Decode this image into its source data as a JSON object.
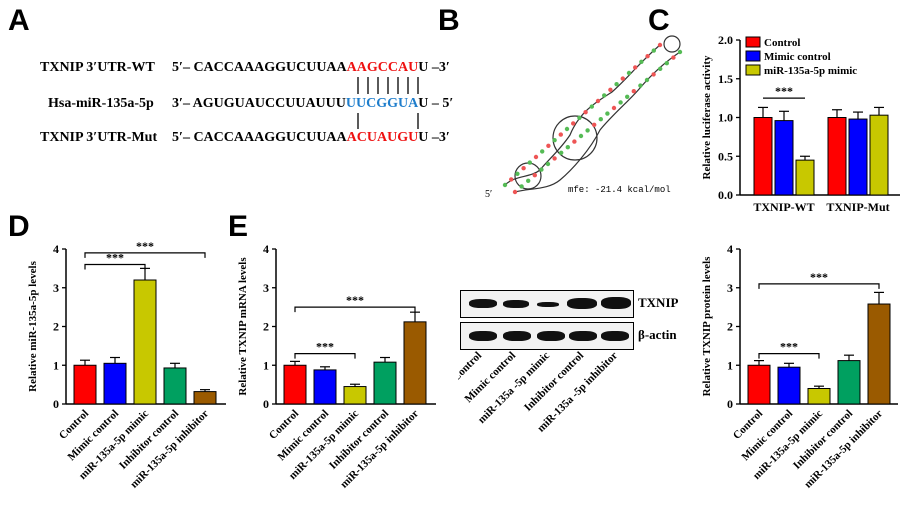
{
  "panels": {
    "A": "A",
    "B": "B",
    "C": "C",
    "D": "D",
    "E": "E"
  },
  "panelA": {
    "rows": [
      {
        "name": "TXNIP 3′UTR-WT",
        "prefix": "5′– CACCAAAGGUCUUAA",
        "highlight": "AAGCCAU",
        "suffix": "U –3′",
        "color": "red"
      },
      {
        "name": "Hsa-miR-135a-5p",
        "prefix": "3′– AGUGUAUCCUUAUUU",
        "highlight": "UUCGGUA",
        "suffix": "U – 5′",
        "color": "blue"
      },
      {
        "name": "TXNIP 3′UTR-Mut",
        "prefix": "5′– CACCAAAGGUCUUAA",
        "highlight": "ACUAUGU",
        "suffix": "U –3′",
        "color": "red"
      }
    ]
  },
  "panelB": {
    "mfe": "mfe: -21.4 kcal/mol",
    "five_prime": "5′"
  },
  "blot": {
    "labels": [
      "TXNIP",
      "β-actin"
    ],
    "lanes": [
      "Control",
      "Mimic control",
      "miR-135a -5p mimic",
      "Inhibitor control",
      "miR-135a -5p inhibitor"
    ]
  },
  "colors": {
    "red": "#ff0000",
    "blue": "#0000ff",
    "yellow": "#c8c800",
    "green": "#00a060",
    "brown": "#9a5a00"
  },
  "chart_data": [
    {
      "id": "C",
      "type": "bar",
      "categories": [
        "TXNIP-WT",
        "TXNIP-Mut"
      ],
      "series": [
        {
          "name": "Control",
          "values": [
            1.0,
            1.0
          ],
          "errors": [
            0.13,
            0.1
          ]
        },
        {
          "name": "Mimic control",
          "values": [
            0.96,
            0.98
          ],
          "errors": [
            0.12,
            0.09
          ]
        },
        {
          "name": "miR-135a-5p mimic",
          "values": [
            0.45,
            1.03
          ],
          "errors": [
            0.05,
            0.1
          ]
        }
      ],
      "ylabel": "Relative luciferase activity",
      "ylim": [
        0,
        2.0
      ],
      "yticks": [
        "0.0",
        "0.5",
        "1.0",
        "1.5",
        "2.0"
      ],
      "significance": [
        {
          "text": "***",
          "from": "Control",
          "to": "miR-135a-5p mimic"
        }
      ],
      "legend": "top-left"
    },
    {
      "id": "D",
      "type": "bar",
      "categories": [
        "Control",
        "Mimic control",
        "miR-135a-5p mimic",
        "Inhibitor control",
        "miR-135a-5p inhibitor"
      ],
      "values": [
        1.0,
        1.05,
        3.2,
        0.93,
        0.32
      ],
      "errors": [
        0.13,
        0.15,
        0.3,
        0.12,
        0.05
      ],
      "ylabel": "Relative miR-135a-5p levels",
      "ylim": [
        0,
        4
      ],
      "yticks": [
        "0",
        "1",
        "2",
        "3",
        "4"
      ],
      "significance": [
        {
          "text": "***",
          "from": 0,
          "to": 2,
          "level": 3.6
        },
        {
          "text": "***",
          "from": 0,
          "to": 4,
          "level": 3.9
        }
      ]
    },
    {
      "id": "E1",
      "type": "bar",
      "categories": [
        "Control",
        "Mimic control",
        "miR-135a-5p mimic",
        "Inhibitor control",
        "miR-135a-5p inhibitor"
      ],
      "values": [
        1.0,
        0.88,
        0.45,
        1.08,
        2.12
      ],
      "errors": [
        0.1,
        0.08,
        0.06,
        0.12,
        0.25
      ],
      "ylabel": "Relative TXNIP mRNA levels",
      "ylim": [
        0,
        4
      ],
      "yticks": [
        "0",
        "1",
        "2",
        "3",
        "4"
      ],
      "significance": [
        {
          "text": "***",
          "from": 0,
          "to": 2,
          "level": 1.3
        },
        {
          "text": "***",
          "from": 0,
          "to": 4,
          "level": 2.5
        }
      ]
    },
    {
      "id": "E2",
      "type": "bar",
      "categories": [
        "Control",
        "Mimic control",
        "miR-135a-5p mimic",
        "Inhibitor control",
        "miR-135a-5p inhibitor"
      ],
      "values": [
        1.0,
        0.95,
        0.4,
        1.12,
        2.58
      ],
      "errors": [
        0.12,
        0.1,
        0.06,
        0.14,
        0.3
      ],
      "ylabel": "Relative TXNIP protein levels",
      "ylim": [
        0,
        4
      ],
      "yticks": [
        "0",
        "1",
        "2",
        "3",
        "4"
      ],
      "significance": [
        {
          "text": "***",
          "from": 0,
          "to": 2,
          "level": 1.3
        },
        {
          "text": "***",
          "from": 0,
          "to": 4,
          "level": 3.1
        }
      ]
    }
  ]
}
